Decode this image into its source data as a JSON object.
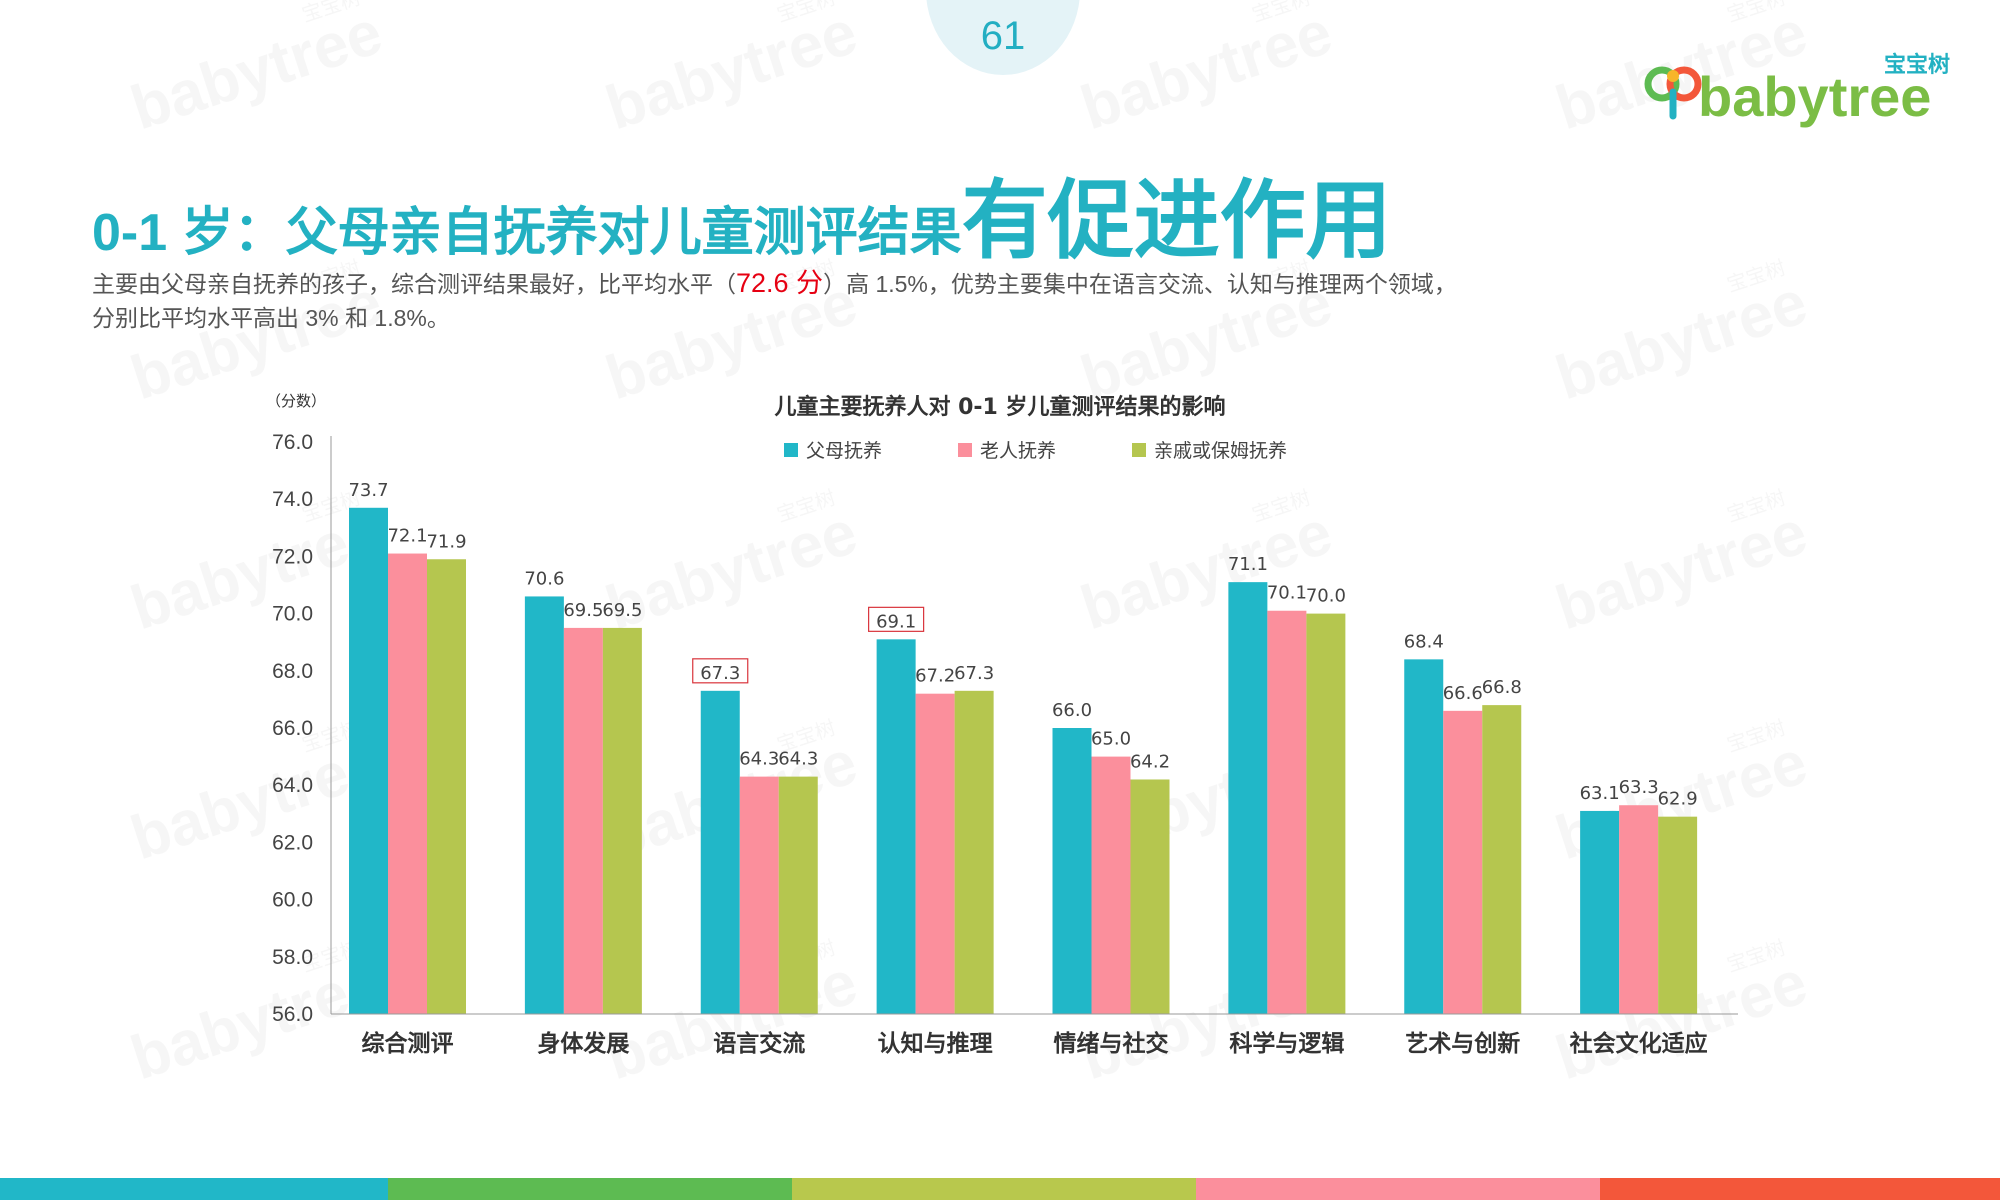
{
  "page_number": "61",
  "logo": {
    "cn": "宝宝树",
    "en": "babytree"
  },
  "title": {
    "part1": "0-1 岁：父母亲自抚养对儿童测评结果",
    "part2": "有促进作用"
  },
  "description": {
    "before": "主要由父母亲自抚养的孩子，综合测评结果最好，比平均水平（",
    "highlight": "72.6 分",
    "after": "）高 1.5%，优势主要集中在语言交流、认知与推理两个领域，分别比平均水平高出 3% 和 1.8%。"
  },
  "colors": {
    "teal": "#21b7c8",
    "pink": "#fb8f9c",
    "green": "#b5c64f",
    "title": "#23b1c2",
    "highlight": "#e60012"
  },
  "watermark": {
    "cn": "宝宝树",
    "en": "babytree"
  },
  "bottom_bar_colors": [
    "#21b7c8",
    "#5dbb52",
    "#b8c84d",
    "#fb8f9c",
    "#f3573a"
  ],
  "chart_data": {
    "type": "bar",
    "title": "儿童主要抚养人对 0-1 岁儿童测评结果的影响",
    "ylabel": "（分数）",
    "ylim": [
      56,
      76
    ],
    "yticks": [
      "56.0",
      "58.0",
      "60.0",
      "62.0",
      "64.0",
      "66.0",
      "68.0",
      "70.0",
      "72.0",
      "74.0",
      "76.0"
    ],
    "categories": [
      "综合测评",
      "身体发展",
      "语言交流",
      "认知与推理",
      "情绪与社交",
      "科学与逻辑",
      "艺术与创新",
      "社会文化适应"
    ],
    "series": [
      {
        "name": "父母抚养",
        "color": "#21b7c8",
        "values": [
          73.7,
          70.6,
          67.3,
          69.1,
          66.0,
          71.1,
          68.4,
          63.1
        ],
        "labels": [
          "73.7",
          "70.6",
          "67.3",
          "69.1",
          "66.0",
          "71.1",
          "68.4",
          "63.1"
        ]
      },
      {
        "name": "老人抚养",
        "color": "#fb8f9c",
        "values": [
          72.1,
          69.5,
          64.3,
          67.2,
          65.0,
          70.1,
          66.6,
          63.3
        ],
        "labels": [
          "72.1",
          "69.5",
          "64.3",
          "67.2",
          "65.0",
          "70.1",
          "66.6",
          "63.3"
        ]
      },
      {
        "name": "亲戚或保姆抚养",
        "color": "#b5c64f",
        "values": [
          71.9,
          69.5,
          64.3,
          67.3,
          64.2,
          70.0,
          66.8,
          62.9
        ],
        "labels": [
          "71.9",
          "69.5",
          "64.3",
          "67.3",
          "64.2",
          "70.0",
          "66.8",
          "62.9"
        ]
      }
    ],
    "boxed_labels": [
      {
        "series": 0,
        "category": 2
      },
      {
        "series": 0,
        "category": 3
      }
    ],
    "legend_position": "top",
    "grid": false
  }
}
